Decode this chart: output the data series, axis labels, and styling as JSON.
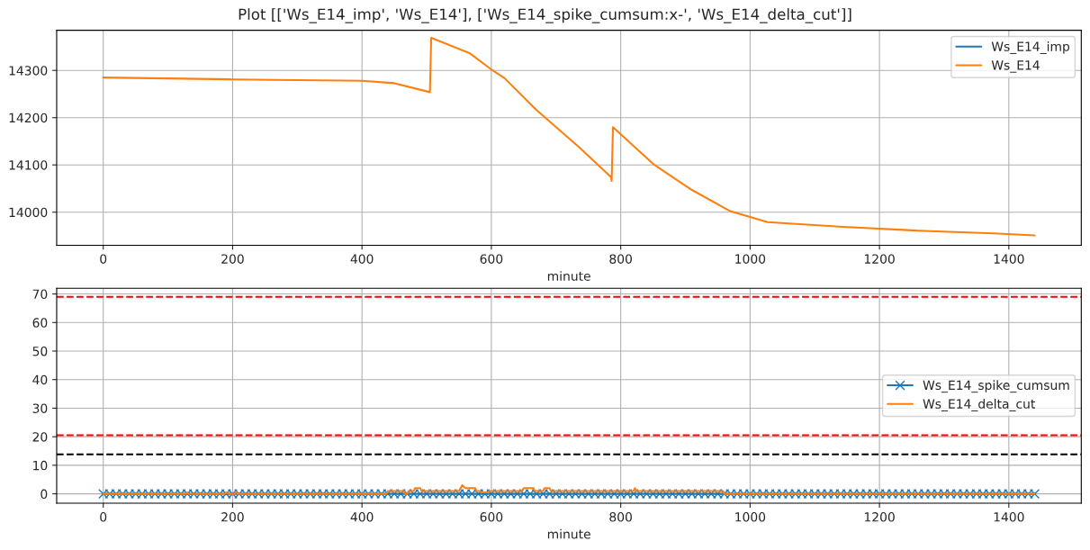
{
  "chart_data": [
    {
      "type": "line",
      "title": "Plot [['Ws_E14_imp', 'Ws_E14'], ['Ws_E14_spike_cumsum:x-', 'Ws_E14_delta_cut']]",
      "xlabel": "minute",
      "xlim": [
        -72,
        1512
      ],
      "xticks": [
        0,
        200,
        400,
        600,
        800,
        1000,
        1200,
        1400
      ],
      "ylim": [
        13930,
        14385
      ],
      "yticks": [
        14000,
        14100,
        14200,
        14300
      ],
      "grid": true,
      "legend": "top right",
      "line_style": "solid",
      "series": [
        {
          "name": "Ws_E14_imp",
          "color": "#1f77b4"
        },
        {
          "name": "Ws_E14",
          "color": "#ff7f0e",
          "x": [
            0,
            200,
            400,
            450,
            505,
            507,
            567,
            602,
            620,
            669,
            736,
            785,
            786,
            788,
            852,
            910,
            968,
            1027,
            1143,
            1259,
            1376,
            1440
          ],
          "values": [
            14285,
            14281,
            14278,
            14273,
            14254,
            14369,
            14336,
            14300,
            14284,
            14217,
            14137,
            14074,
            14066,
            14180,
            14100,
            14047,
            14003,
            13979,
            13969,
            13961,
            13955,
            13951
          ]
        }
      ]
    },
    {
      "type": "line",
      "xlabel": "minute",
      "xlim": [
        -72,
        1512
      ],
      "xticks": [
        0,
        200,
        400,
        600,
        800,
        1000,
        1200,
        1400
      ],
      "ylim": [
        -3.3,
        72
      ],
      "yticks": [
        0,
        10,
        20,
        30,
        40,
        50,
        60,
        70
      ],
      "grid": true,
      "legend": "right",
      "line_style": "solid",
      "ref_lines": [
        {
          "axis": "y",
          "value": 69,
          "color": "#ff0000",
          "line_style": "dashed"
        },
        {
          "axis": "y",
          "value": 20.5,
          "color": "#ff0000",
          "line_style": "dashed"
        },
        {
          "axis": "y",
          "value": 13.8,
          "color": "#000000",
          "line_style": "dashed"
        }
      ],
      "series": [
        {
          "name": "Ws_E14_spike_cumsum",
          "color": "#1f77b4",
          "marker": "cross",
          "x": [
            0,
            10,
            20,
            30,
            40,
            50,
            60,
            70,
            80,
            90,
            100,
            110,
            120,
            130,
            140,
            150,
            160,
            170,
            180,
            190,
            200,
            210,
            220,
            230,
            240,
            250,
            260,
            270,
            280,
            290,
            300,
            310,
            320,
            330,
            340,
            350,
            360,
            370,
            380,
            390,
            400,
            410,
            420,
            430,
            440,
            450,
            460,
            470,
            480,
            490,
            500,
            510,
            520,
            530,
            540,
            550,
            560,
            570,
            580,
            590,
            600,
            610,
            620,
            630,
            640,
            650,
            660,
            670,
            680,
            690,
            700,
            710,
            720,
            730,
            740,
            750,
            760,
            770,
            780,
            790,
            800,
            810,
            820,
            830,
            840,
            850,
            860,
            870,
            880,
            890,
            900,
            910,
            920,
            930,
            940,
            950,
            960,
            970,
            980,
            990,
            1000,
            1010,
            1020,
            1030,
            1040,
            1050,
            1060,
            1070,
            1080,
            1090,
            1100,
            1110,
            1120,
            1130,
            1140,
            1150,
            1160,
            1170,
            1180,
            1190,
            1200,
            1210,
            1220,
            1230,
            1240,
            1250,
            1260,
            1270,
            1280,
            1290,
            1300,
            1310,
            1320,
            1330,
            1340,
            1350,
            1360,
            1370,
            1380,
            1390,
            1400,
            1410,
            1420,
            1430,
            1440
          ],
          "values": [
            0,
            0,
            0,
            0,
            0,
            0,
            0,
            0,
            0,
            0,
            0,
            0,
            0,
            0,
            0,
            0,
            0,
            0,
            0,
            0,
            0,
            0,
            0,
            0,
            0,
            0,
            0,
            0,
            0,
            0,
            0,
            0,
            0,
            0,
            0,
            0,
            0,
            0,
            0,
            0,
            0,
            0,
            0,
            0,
            0,
            0,
            0,
            0,
            0,
            0,
            0,
            0,
            0,
            0,
            0,
            0,
            0,
            0,
            0,
            0,
            0,
            0,
            0,
            0,
            0,
            0,
            0,
            0,
            0,
            0,
            0,
            0,
            0,
            0,
            0,
            0,
            0,
            0,
            0,
            0,
            0,
            0,
            0,
            0,
            0,
            0,
            0,
            0,
            0,
            0,
            0,
            0,
            0,
            0,
            0,
            0,
            0,
            0,
            0,
            0,
            0,
            0,
            0,
            0,
            0,
            0,
            0,
            0,
            0,
            0,
            0,
            0,
            0,
            0,
            0,
            0,
            0,
            0,
            0,
            0,
            0,
            0,
            0,
            0,
            0,
            0,
            0,
            0,
            0,
            0,
            0,
            0,
            0,
            0,
            0,
            0,
            0,
            0,
            0,
            0,
            0,
            0,
            0,
            0,
            0
          ]
        },
        {
          "name": "Ws_E14_delta_cut",
          "color": "#ff7f0e",
          "x": [
            0,
            128,
            130,
            132,
            188,
            190,
            195,
            203,
            205,
            208,
            333,
            335,
            337,
            438,
            440,
            465,
            467,
            470,
            472,
            480,
            482,
            490,
            492,
            550,
            555,
            560,
            575,
            577,
            583,
            585,
            595,
            597,
            648,
            650,
            665,
            667,
            680,
            682,
            690,
            692,
            820,
            822,
            824,
            958,
            960,
            1440
          ],
          "values": [
            0,
            0,
            0.5,
            0,
            0,
            0.5,
            0,
            0,
            0.7,
            0,
            0,
            0.5,
            0,
            0,
            1,
            1,
            0,
            0,
            1,
            1,
            2,
            2,
            1,
            1,
            3,
            2,
            2,
            1,
            1,
            0.5,
            0.5,
            1,
            1,
            2,
            2,
            1,
            1,
            2,
            2,
            1,
            1,
            2,
            1,
            1,
            0,
            0
          ]
        }
      ]
    }
  ]
}
